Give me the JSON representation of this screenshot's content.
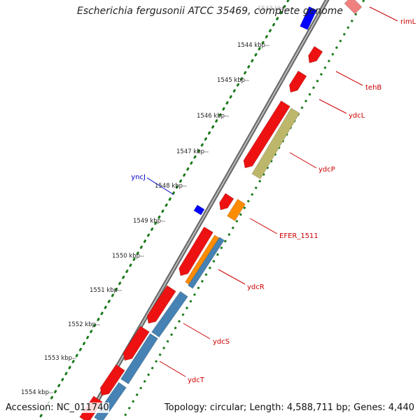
{
  "title": "Escherichia fergusonii ATCC 35469, complete genome",
  "footer": {
    "accession": "Accession: NC_011740",
    "topology": "Topology: circular; Length: 4,588,711 bp; Genes: 4,440"
  },
  "colors": {
    "forward_cds": "#ee1111",
    "reverse_cds": "#4682b4",
    "pseudo_orange": "#ff8c00",
    "khaki": "#bdb76b",
    "blue_gene": "#0000ff",
    "pink_gene": "#f08080",
    "gene_label": "#cc0000",
    "blue_label": "#0000cc",
    "tick_green": "#1a7a1a"
  },
  "ticks": [
    "1543 kbp",
    "1544 kbp",
    "1545 kbp",
    "1546 kbp",
    "1547 kbp",
    "1548 kbp",
    "1549 kbp",
    "1550 kbp",
    "1551 kbp",
    "1552 kbp",
    "1553 kbp",
    "1554 kbp"
  ],
  "gene_labels": [
    "rimL",
    "tehB",
    "ydcL",
    "ydcP",
    "yncJ",
    "EFER_1511",
    "ydcR",
    "ydcS",
    "ydcT"
  ]
}
